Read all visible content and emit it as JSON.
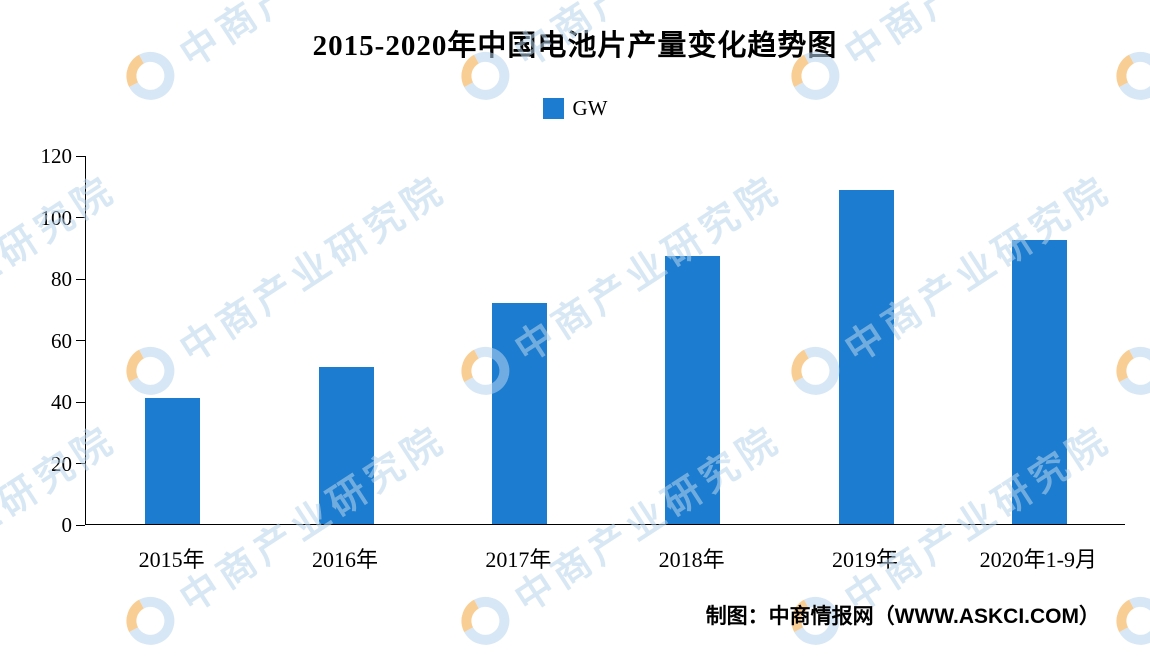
{
  "title": "2015-2020年中国电池片产量变化趋势图",
  "legend": {
    "label": "GW",
    "color": "#1b7cd0"
  },
  "watermark": {
    "text": "中商产业研究院"
  },
  "footer": {
    "credit": "制图：中商情报网（WWW.ASKCI.COM）"
  },
  "chart_data": {
    "type": "bar",
    "title": "2015-2020年中国电池片产量变化趋势图",
    "categories": [
      "2015年",
      "2016年",
      "2017年",
      "2018年",
      "2019年",
      "2020年1-9月"
    ],
    "values": [
      41,
      51,
      72,
      87.2,
      108.6,
      92.3
    ],
    "series": [
      {
        "name": "GW",
        "values": [
          41,
          51,
          72,
          87.2,
          108.6,
          92.3
        ]
      }
    ],
    "xlabel": "",
    "ylabel": "",
    "ylim": [
      0,
      120
    ],
    "yticks": [
      0,
      20,
      40,
      60,
      80,
      100,
      120
    ],
    "legend_entries": [
      "GW"
    ],
    "legend_position": "top-center",
    "grid": false,
    "bar_color": "#1b7cd0"
  }
}
